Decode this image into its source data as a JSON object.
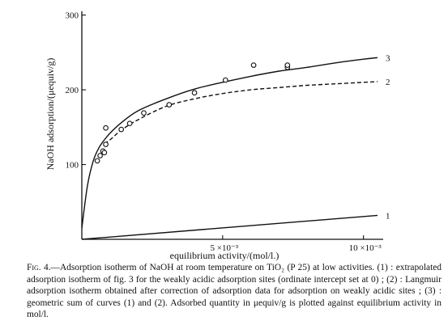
{
  "caption": {
    "fig_tag": "Fig. 4.",
    "text": "—Adsorption isotherm of NaOH at room temperature on TiO₂ (P 25) at low activities.   (1) : extrapolated adsorption isotherm of fig. 3 for the weakly acidic adsorption sites (ordinate intercept set at 0) ;  (2) :  Langmuir adsorption isotherm obtained after correction of adsorption data for adsorption on weakly acidic sites ;  (3) :  geometric sum of curves (1) and (2).   Adsorbed quantity in μequiv/g is plotted against equilibrium activity in mol/l."
  },
  "chart_data": {
    "type": "line",
    "xlabel": "equilibrium activity/(mol/l.)",
    "ylabel": "NaOH adsorption/(μequiv/g)",
    "xlim": [
      0,
      0.0107
    ],
    "ylim": [
      0,
      305
    ],
    "x_ticks": [
      {
        "value": 0.005,
        "label": "5 ×10⁻³"
      },
      {
        "value": 0.01,
        "label": "10 ×10⁻³"
      }
    ],
    "y_ticks": [
      {
        "value": 100,
        "label": "100"
      },
      {
        "value": 200,
        "label": "200"
      },
      {
        "value": 300,
        "label": "300"
      }
    ],
    "series": [
      {
        "name": "3",
        "style": "solid",
        "x": [
          0.0,
          0.0002,
          0.0004,
          0.0006,
          0.0008,
          0.001,
          0.0014,
          0.002,
          0.003,
          0.004,
          0.005,
          0.006,
          0.007,
          0.008,
          0.009,
          0.01,
          0.0105
        ],
        "y": [
          15,
          72,
          104,
          122,
          133,
          142,
          156,
          172,
          188,
          201,
          210,
          218,
          225,
          230,
          236,
          241,
          243
        ]
      },
      {
        "name": "2",
        "style": "dashed",
        "x": [
          0.0008,
          0.001,
          0.0014,
          0.002,
          0.003,
          0.004,
          0.005,
          0.006,
          0.007,
          0.008,
          0.009,
          0.01,
          0.0105
        ],
        "y": [
          128,
          133,
          146,
          160,
          178,
          188,
          195,
          200,
          203,
          206,
          208,
          210,
          211
        ]
      },
      {
        "name": "1",
        "style": "solid",
        "x": [
          0.0,
          0.0105
        ],
        "y": [
          0,
          32
        ]
      }
    ],
    "points": {
      "x": [
        0.00055,
        0.00065,
        0.00075,
        0.0008,
        0.00085,
        0.00085,
        0.0014,
        0.0017,
        0.0022,
        0.0031,
        0.004,
        0.0051,
        0.0061,
        0.0073,
        0.0073
      ],
      "y": [
        105,
        112,
        118,
        116,
        127,
        149,
        147,
        155,
        169,
        180,
        196,
        213,
        233,
        230,
        233
      ]
    }
  }
}
